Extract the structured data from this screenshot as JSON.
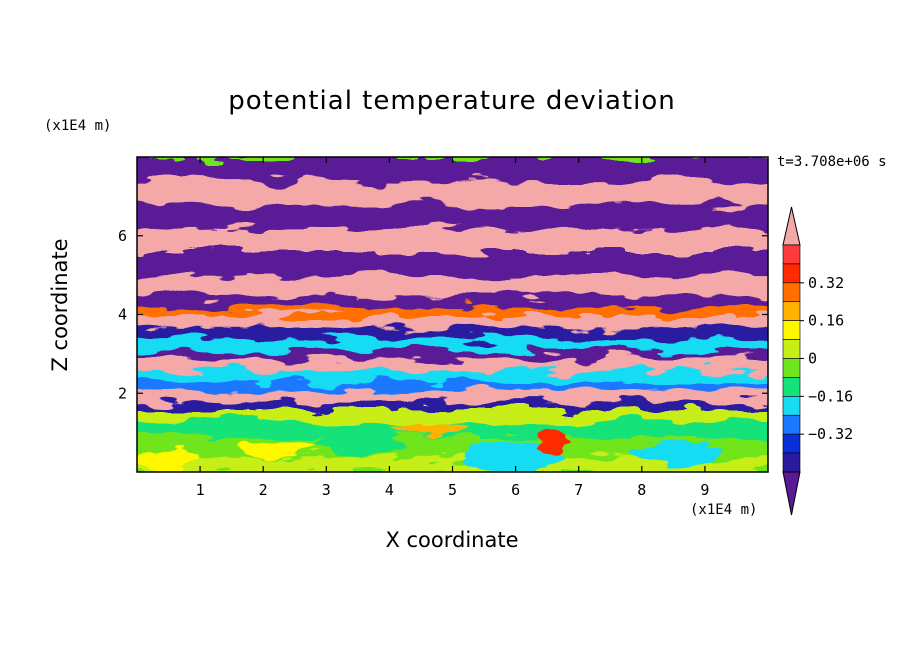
{
  "chart_data": {
    "type": "heatmap",
    "title": "potential temperature deviation",
    "xlabel": "X coordinate",
    "ylabel": "Z coordinate",
    "x_unit": "(x1E4 m)",
    "z_unit": "(x1E4 m)",
    "time_label": "t=3.708e+06 s",
    "xlim": [
      0,
      10
    ],
    "ylim": [
      0,
      8
    ],
    "x_ticks": [
      "1",
      "2",
      "3",
      "4",
      "5",
      "6",
      "7",
      "8",
      "9"
    ],
    "y_ticks": [
      "2",
      "4",
      "6"
    ],
    "colorbar": {
      "levels": [
        -0.48,
        -0.4,
        -0.32,
        -0.24,
        -0.16,
        -0.08,
        0,
        0.08,
        0.16,
        0.24,
        0.32,
        0.4,
        0.48
      ],
      "colors": [
        "#5a1a96",
        "#2a1aa0",
        "#0b2fd6",
        "#1a79ff",
        "#18dcf3",
        "#14e27a",
        "#6fe51e",
        "#c7ee16",
        "#fff700",
        "#ffb300",
        "#ff7000",
        "#ff2a00",
        "#ff3a3a",
        "#f4a8a8"
      ],
      "labels": [
        "0.32",
        "0.16",
        "0",
        "−0.16",
        "−0.32"
      ],
      "extend": "both"
    },
    "bands": [
      {
        "z_range": [
          0,
          1.6
        ],
        "description": "mostly green/yellow with cyan patches"
      },
      {
        "z_range": [
          1.6,
          4.5
        ],
        "description": "mixed blue, cyan, pink, orange"
      },
      {
        "z_range": [
          4.5,
          8
        ],
        "description": "alternating purple and pink layers"
      }
    ]
  }
}
